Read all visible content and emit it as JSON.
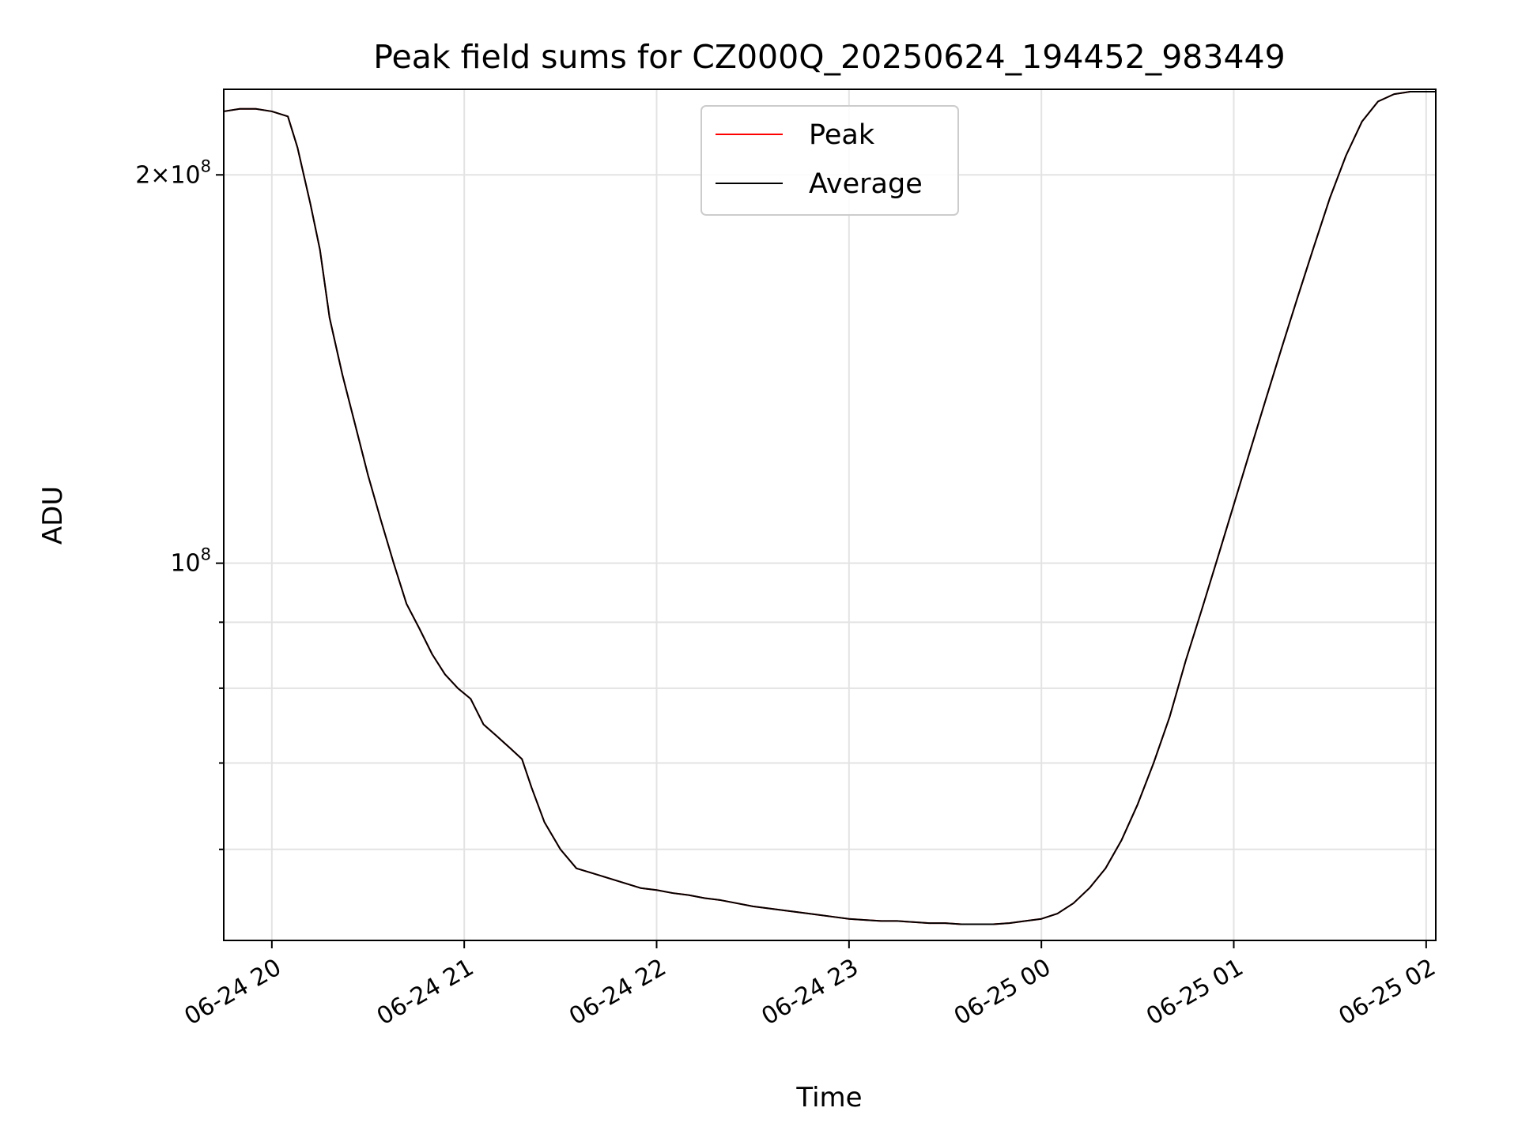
{
  "chart_data": {
    "type": "line",
    "title": "Peak field sums for CZ000Q_20250624_194452_983449",
    "xlabel": "Time",
    "ylabel": "ADU",
    "y_scale": "log",
    "grid": true,
    "legend_position": "top-center",
    "xlim": [
      "2025-06-24 19:45",
      "2025-06-25 02:03"
    ],
    "ylim": [
      51000000,
      233000000
    ],
    "x_ticks": [
      {
        "t": "2025-06-24 20:00",
        "label": "06-24 20"
      },
      {
        "t": "2025-06-24 21:00",
        "label": "06-24 21"
      },
      {
        "t": "2025-06-24 22:00",
        "label": "06-24 22"
      },
      {
        "t": "2025-06-24 23:00",
        "label": "06-24 23"
      },
      {
        "t": "2025-06-25 00:00",
        "label": "06-25 00"
      },
      {
        "t": "2025-06-25 01:00",
        "label": "06-25 01"
      },
      {
        "t": "2025-06-25 02:00",
        "label": "06-25 02"
      }
    ],
    "y_major_ticks": [
      {
        "value": 100000000,
        "base": "10",
        "exp": "8"
      },
      {
        "value": 200000000,
        "prefix": "2×",
        "base": "10",
        "exp": "8"
      }
    ],
    "y_minor_ticks": [
      60000000,
      70000000,
      80000000,
      90000000
    ],
    "series": [
      {
        "name": "Peak",
        "color": "#ff0000",
        "points": [
          [
            "2025-06-24 19:45",
            224000000
          ],
          [
            "2025-06-24 19:50",
            225000000
          ],
          [
            "2025-06-24 19:55",
            225000000
          ],
          [
            "2025-06-24 20:00",
            224000000
          ],
          [
            "2025-06-24 20:05",
            222000000
          ],
          [
            "2025-06-24 20:08",
            210000000
          ],
          [
            "2025-06-24 20:12",
            190000000
          ],
          [
            "2025-06-24 20:15",
            175000000
          ],
          [
            "2025-06-24 20:18",
            155000000
          ],
          [
            "2025-06-24 20:22",
            140000000
          ],
          [
            "2025-06-24 20:26",
            128000000
          ],
          [
            "2025-06-24 20:30",
            117000000
          ],
          [
            "2025-06-24 20:34",
            108000000
          ],
          [
            "2025-06-24 20:38",
            100000000
          ],
          [
            "2025-06-24 20:42",
            93000000
          ],
          [
            "2025-06-24 20:46",
            89000000
          ],
          [
            "2025-06-24 20:50",
            85000000
          ],
          [
            "2025-06-24 20:54",
            82000000
          ],
          [
            "2025-06-24 20:58",
            80000000
          ],
          [
            "2025-06-24 21:02",
            78500000
          ],
          [
            "2025-06-24 21:06",
            75000000
          ],
          [
            "2025-06-24 21:10",
            73500000
          ],
          [
            "2025-06-24 21:14",
            72000000
          ],
          [
            "2025-06-24 21:18",
            70500000
          ],
          [
            "2025-06-24 21:21",
            67000000
          ],
          [
            "2025-06-24 21:25",
            63000000
          ],
          [
            "2025-06-24 21:30",
            60000000
          ],
          [
            "2025-06-24 21:35",
            58000000
          ],
          [
            "2025-06-24 21:40",
            57500000
          ],
          [
            "2025-06-24 21:45",
            57000000
          ],
          [
            "2025-06-24 21:50",
            56500000
          ],
          [
            "2025-06-24 21:55",
            56000000
          ],
          [
            "2025-06-24 22:00",
            55800000
          ],
          [
            "2025-06-24 22:05",
            55500000
          ],
          [
            "2025-06-24 22:10",
            55300000
          ],
          [
            "2025-06-24 22:15",
            55000000
          ],
          [
            "2025-06-24 22:20",
            54800000
          ],
          [
            "2025-06-24 22:25",
            54500000
          ],
          [
            "2025-06-24 22:30",
            54200000
          ],
          [
            "2025-06-24 22:35",
            54000000
          ],
          [
            "2025-06-24 22:40",
            53800000
          ],
          [
            "2025-06-24 22:45",
            53600000
          ],
          [
            "2025-06-24 22:50",
            53400000
          ],
          [
            "2025-06-24 22:55",
            53200000
          ],
          [
            "2025-06-24 23:00",
            53000000
          ],
          [
            "2025-06-24 23:05",
            52900000
          ],
          [
            "2025-06-24 23:10",
            52800000
          ],
          [
            "2025-06-24 23:15",
            52800000
          ],
          [
            "2025-06-24 23:20",
            52700000
          ],
          [
            "2025-06-24 23:25",
            52600000
          ],
          [
            "2025-06-24 23:30",
            52600000
          ],
          [
            "2025-06-24 23:35",
            52500000
          ],
          [
            "2025-06-24 23:40",
            52500000
          ],
          [
            "2025-06-24 23:45",
            52500000
          ],
          [
            "2025-06-24 23:50",
            52600000
          ],
          [
            "2025-06-24 23:55",
            52800000
          ],
          [
            "2025-06-25 00:00",
            53000000
          ],
          [
            "2025-06-25 00:05",
            53500000
          ],
          [
            "2025-06-25 00:10",
            54500000
          ],
          [
            "2025-06-25 00:15",
            56000000
          ],
          [
            "2025-06-25 00:20",
            58000000
          ],
          [
            "2025-06-25 00:25",
            61000000
          ],
          [
            "2025-06-25 00:30",
            65000000
          ],
          [
            "2025-06-25 00:35",
            70000000
          ],
          [
            "2025-06-25 00:40",
            76000000
          ],
          [
            "2025-06-25 00:45",
            84000000
          ],
          [
            "2025-06-25 00:50",
            92000000
          ],
          [
            "2025-06-25 00:55",
            101000000
          ],
          [
            "2025-06-25 01:00",
            111000000
          ],
          [
            "2025-06-25 01:05",
            122000000
          ],
          [
            "2025-06-25 01:10",
            134000000
          ],
          [
            "2025-06-25 01:15",
            147000000
          ],
          [
            "2025-06-25 01:20",
            161000000
          ],
          [
            "2025-06-25 01:25",
            176000000
          ],
          [
            "2025-06-25 01:30",
            192000000
          ],
          [
            "2025-06-25 01:35",
            207000000
          ],
          [
            "2025-06-25 01:40",
            220000000
          ],
          [
            "2025-06-25 01:45",
            228000000
          ],
          [
            "2025-06-25 01:50",
            231000000
          ],
          [
            "2025-06-25 01:55",
            232000000
          ],
          [
            "2025-06-25 02:00",
            232000000
          ],
          [
            "2025-06-25 02:03",
            232000000
          ]
        ]
      },
      {
        "name": "Average",
        "color": "#000000",
        "points": [
          [
            "2025-06-24 19:45",
            224000000
          ],
          [
            "2025-06-24 19:50",
            225000000
          ],
          [
            "2025-06-24 19:55",
            225000000
          ],
          [
            "2025-06-24 20:00",
            224000000
          ],
          [
            "2025-06-24 20:05",
            222000000
          ],
          [
            "2025-06-24 20:08",
            210000000
          ],
          [
            "2025-06-24 20:12",
            190000000
          ],
          [
            "2025-06-24 20:15",
            175000000
          ],
          [
            "2025-06-24 20:18",
            155000000
          ],
          [
            "2025-06-24 20:22",
            140000000
          ],
          [
            "2025-06-24 20:26",
            128000000
          ],
          [
            "2025-06-24 20:30",
            117000000
          ],
          [
            "2025-06-24 20:34",
            108000000
          ],
          [
            "2025-06-24 20:38",
            100000000
          ],
          [
            "2025-06-24 20:42",
            93000000
          ],
          [
            "2025-06-24 20:46",
            89000000
          ],
          [
            "2025-06-24 20:50",
            85000000
          ],
          [
            "2025-06-24 20:54",
            82000000
          ],
          [
            "2025-06-24 20:58",
            80000000
          ],
          [
            "2025-06-24 21:02",
            78500000
          ],
          [
            "2025-06-24 21:06",
            75000000
          ],
          [
            "2025-06-24 21:10",
            73500000
          ],
          [
            "2025-06-24 21:14",
            72000000
          ],
          [
            "2025-06-24 21:18",
            70500000
          ],
          [
            "2025-06-24 21:21",
            67000000
          ],
          [
            "2025-06-24 21:25",
            63000000
          ],
          [
            "2025-06-24 21:30",
            60000000
          ],
          [
            "2025-06-24 21:35",
            58000000
          ],
          [
            "2025-06-24 21:40",
            57500000
          ],
          [
            "2025-06-24 21:45",
            57000000
          ],
          [
            "2025-06-24 21:50",
            56500000
          ],
          [
            "2025-06-24 21:55",
            56000000
          ],
          [
            "2025-06-24 22:00",
            55800000
          ],
          [
            "2025-06-24 22:05",
            55500000
          ],
          [
            "2025-06-24 22:10",
            55300000
          ],
          [
            "2025-06-24 22:15",
            55000000
          ],
          [
            "2025-06-24 22:20",
            54800000
          ],
          [
            "2025-06-24 22:25",
            54500000
          ],
          [
            "2025-06-24 22:30",
            54200000
          ],
          [
            "2025-06-24 22:35",
            54000000
          ],
          [
            "2025-06-24 22:40",
            53800000
          ],
          [
            "2025-06-24 22:45",
            53600000
          ],
          [
            "2025-06-24 22:50",
            53400000
          ],
          [
            "2025-06-24 22:55",
            53200000
          ],
          [
            "2025-06-24 23:00",
            53000000
          ],
          [
            "2025-06-24 23:05",
            52900000
          ],
          [
            "2025-06-24 23:10",
            52800000
          ],
          [
            "2025-06-24 23:15",
            52800000
          ],
          [
            "2025-06-24 23:20",
            52700000
          ],
          [
            "2025-06-24 23:25",
            52600000
          ],
          [
            "2025-06-24 23:30",
            52600000
          ],
          [
            "2025-06-24 23:35",
            52500000
          ],
          [
            "2025-06-24 23:40",
            52500000
          ],
          [
            "2025-06-24 23:45",
            52500000
          ],
          [
            "2025-06-24 23:50",
            52600000
          ],
          [
            "2025-06-24 23:55",
            52800000
          ],
          [
            "2025-06-25 00:00",
            53000000
          ],
          [
            "2025-06-25 00:05",
            53500000
          ],
          [
            "2025-06-25 00:10",
            54500000
          ],
          [
            "2025-06-25 00:15",
            56000000
          ],
          [
            "2025-06-25 00:20",
            58000000
          ],
          [
            "2025-06-25 00:25",
            61000000
          ],
          [
            "2025-06-25 00:30",
            65000000
          ],
          [
            "2025-06-25 00:35",
            70000000
          ],
          [
            "2025-06-25 00:40",
            76000000
          ],
          [
            "2025-06-25 00:45",
            84000000
          ],
          [
            "2025-06-25 00:50",
            92000000
          ],
          [
            "2025-06-25 00:55",
            101000000
          ],
          [
            "2025-06-25 01:00",
            111000000
          ],
          [
            "2025-06-25 01:05",
            122000000
          ],
          [
            "2025-06-25 01:10",
            134000000
          ],
          [
            "2025-06-25 01:15",
            147000000
          ],
          [
            "2025-06-25 01:20",
            161000000
          ],
          [
            "2025-06-25 01:25",
            176000000
          ],
          [
            "2025-06-25 01:30",
            192000000
          ],
          [
            "2025-06-25 01:35",
            207000000
          ],
          [
            "2025-06-25 01:40",
            220000000
          ],
          [
            "2025-06-25 01:45",
            228000000
          ],
          [
            "2025-06-25 01:50",
            231000000
          ],
          [
            "2025-06-25 01:55",
            232000000
          ],
          [
            "2025-06-25 02:00",
            232000000
          ],
          [
            "2025-06-25 02:03",
            232000000
          ]
        ]
      }
    ]
  }
}
